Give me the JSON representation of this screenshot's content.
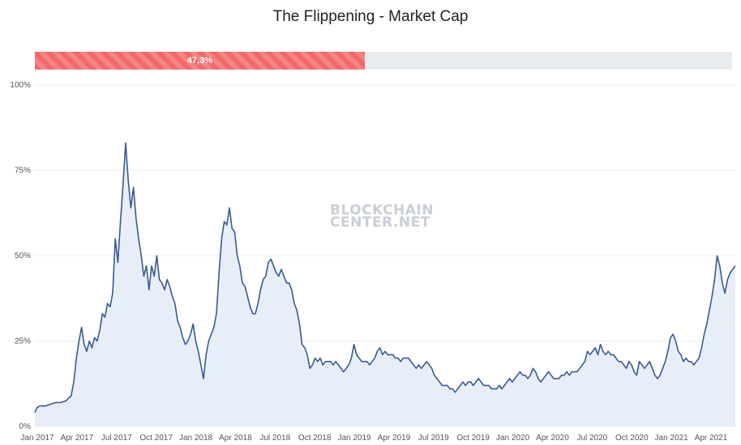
{
  "chart_data": {
    "type": "area",
    "title": "The Flippening - Market Cap",
    "ylim": [
      0,
      100
    ],
    "y_ticks": [
      "0%",
      "25%",
      "50%",
      "75%",
      "100%"
    ],
    "x_ticks": [
      "Jan 2017",
      "Apr 2017",
      "Jul 2017",
      "Oct 2017",
      "Jan 2018",
      "Apr 2018",
      "Jul 2018",
      "Oct 2018",
      "Jan 2019",
      "Apr 2019",
      "Jul 2019",
      "Oct 2019",
      "Jan 2020",
      "Apr 2020",
      "Jul 2020",
      "Oct 2020",
      "Jan 2021",
      "Apr 2021"
    ],
    "grid": true,
    "series": [
      {
        "values": [
          [
            0,
            4
          ],
          [
            0.4,
            5.5
          ],
          [
            1,
            6
          ],
          [
            2,
            6
          ],
          [
            3,
            6.5
          ],
          [
            4,
            7
          ],
          [
            5,
            7
          ],
          [
            6,
            7.5
          ],
          [
            7,
            9
          ],
          [
            7.5,
            13
          ],
          [
            8,
            20
          ],
          [
            8.5,
            25
          ],
          [
            9,
            29
          ],
          [
            9.5,
            24
          ],
          [
            10,
            22
          ],
          [
            10.5,
            25
          ],
          [
            11,
            23
          ],
          [
            11.5,
            26
          ],
          [
            12,
            25
          ],
          [
            12.5,
            28
          ],
          [
            13,
            33
          ],
          [
            13.5,
            32
          ],
          [
            14,
            36
          ],
          [
            14.5,
            35
          ],
          [
            15,
            39
          ],
          [
            15.5,
            55
          ],
          [
            16,
            48
          ],
          [
            16.5,
            60
          ],
          [
            17,
            71
          ],
          [
            17.5,
            83
          ],
          [
            18,
            72
          ],
          [
            18.5,
            64
          ],
          [
            19,
            70
          ],
          [
            19.5,
            61
          ],
          [
            20,
            55
          ],
          [
            20.5,
            50
          ],
          [
            21,
            44
          ],
          [
            21.5,
            47
          ],
          [
            22,
            40
          ],
          [
            22.5,
            47
          ],
          [
            23,
            44
          ],
          [
            23.5,
            50
          ],
          [
            24,
            43
          ],
          [
            24.5,
            42
          ],
          [
            25,
            40
          ],
          [
            25.5,
            43
          ],
          [
            26,
            41
          ],
          [
            26.5,
            38
          ],
          [
            27,
            36
          ],
          [
            27.5,
            31
          ],
          [
            28,
            29
          ],
          [
            28.5,
            26
          ],
          [
            29,
            24
          ],
          [
            29.5,
            25
          ],
          [
            30,
            27
          ],
          [
            30.5,
            30
          ],
          [
            31,
            25
          ],
          [
            31.5,
            22
          ],
          [
            32,
            18
          ],
          [
            32.5,
            14
          ],
          [
            33,
            21
          ],
          [
            33.5,
            25
          ],
          [
            34,
            27
          ],
          [
            34.5,
            29
          ],
          [
            35,
            33
          ],
          [
            35.5,
            45
          ],
          [
            36,
            55
          ],
          [
            36.5,
            60
          ],
          [
            37,
            59
          ],
          [
            37.5,
            64
          ],
          [
            38,
            58
          ],
          [
            38.5,
            57
          ],
          [
            39,
            50
          ],
          [
            39.5,
            47
          ],
          [
            40,
            42
          ],
          [
            40.5,
            41
          ],
          [
            41,
            38
          ],
          [
            41.5,
            35
          ],
          [
            42,
            33
          ],
          [
            42.5,
            33
          ],
          [
            43,
            36
          ],
          [
            43.5,
            40
          ],
          [
            44,
            43
          ],
          [
            44.5,
            44
          ],
          [
            45,
            48
          ],
          [
            45.5,
            49
          ],
          [
            46,
            47
          ],
          [
            46.5,
            45
          ],
          [
            47,
            44
          ],
          [
            47.5,
            46
          ],
          [
            48,
            44
          ],
          [
            48.5,
            42
          ],
          [
            49,
            42
          ],
          [
            49.5,
            40
          ],
          [
            50,
            36
          ],
          [
            50.5,
            34
          ],
          [
            51,
            30
          ],
          [
            51.5,
            24
          ],
          [
            52,
            23
          ],
          [
            52.5,
            21
          ],
          [
            53,
            17
          ],
          [
            53.5,
            18
          ],
          [
            54,
            20
          ],
          [
            54.5,
            19
          ],
          [
            55,
            20
          ],
          [
            55.5,
            18
          ],
          [
            56,
            19
          ],
          [
            56.5,
            19
          ],
          [
            57,
            19
          ],
          [
            57.5,
            18
          ],
          [
            58,
            19
          ],
          [
            58.5,
            18
          ],
          [
            59,
            17
          ],
          [
            59.5,
            16
          ],
          [
            60,
            17
          ],
          [
            60.5,
            18
          ],
          [
            61,
            20
          ],
          [
            61.5,
            24
          ],
          [
            62,
            21
          ],
          [
            62.5,
            20
          ],
          [
            63,
            19
          ],
          [
            63.5,
            19
          ],
          [
            64,
            19
          ],
          [
            64.5,
            18
          ],
          [
            65,
            19
          ],
          [
            65.5,
            20
          ],
          [
            66,
            22
          ],
          [
            66.5,
            23
          ],
          [
            67,
            21
          ],
          [
            67.5,
            22
          ],
          [
            68,
            21
          ],
          [
            68.5,
            21
          ],
          [
            69,
            21
          ],
          [
            69.5,
            20
          ],
          [
            70,
            20
          ],
          [
            70.5,
            19
          ],
          [
            71,
            20
          ],
          [
            71.5,
            20
          ],
          [
            72,
            20
          ],
          [
            72.5,
            19
          ],
          [
            73,
            18
          ],
          [
            73.5,
            17
          ],
          [
            74,
            18
          ],
          [
            74.5,
            17
          ],
          [
            75,
            18
          ],
          [
            75.5,
            19
          ],
          [
            76,
            18
          ],
          [
            76.5,
            17
          ],
          [
            77,
            15
          ],
          [
            77.5,
            14
          ],
          [
            78,
            13
          ],
          [
            78.5,
            12
          ],
          [
            79,
            12
          ],
          [
            79.5,
            12
          ],
          [
            80,
            11
          ],
          [
            80.5,
            11
          ],
          [
            81,
            10
          ],
          [
            81.5,
            11
          ],
          [
            82,
            12
          ],
          [
            82.5,
            13
          ],
          [
            83,
            12
          ],
          [
            83.5,
            13
          ],
          [
            84,
            13
          ],
          [
            84.5,
            12
          ],
          [
            85,
            13
          ],
          [
            85.5,
            14
          ],
          [
            86,
            13
          ],
          [
            86.5,
            12
          ],
          [
            87,
            12
          ],
          [
            87.5,
            12
          ],
          [
            88,
            11
          ],
          [
            88.5,
            11
          ],
          [
            89,
            11
          ],
          [
            89.5,
            12
          ],
          [
            90,
            11
          ],
          [
            90.5,
            12
          ],
          [
            91,
            13
          ],
          [
            91.5,
            14
          ],
          [
            92,
            13
          ],
          [
            92.5,
            14
          ],
          [
            93,
            15
          ],
          [
            93.5,
            16
          ],
          [
            94,
            15
          ],
          [
            94.5,
            15
          ],
          [
            95,
            14
          ],
          [
            95.5,
            15
          ],
          [
            96,
            17
          ],
          [
            96.5,
            16
          ],
          [
            97,
            14
          ],
          [
            97.5,
            13
          ],
          [
            98,
            14
          ],
          [
            98.5,
            15
          ],
          [
            99,
            16
          ],
          [
            99.5,
            15
          ],
          [
            100,
            14
          ],
          [
            100.5,
            14
          ],
          [
            101,
            14
          ],
          [
            101.5,
            15
          ],
          [
            102,
            15
          ],
          [
            102.5,
            16
          ],
          [
            103,
            15
          ],
          [
            103.5,
            16
          ],
          [
            104,
            16
          ],
          [
            104.5,
            16
          ],
          [
            105,
            17
          ],
          [
            105.5,
            18
          ],
          [
            106,
            19
          ],
          [
            106.5,
            22
          ],
          [
            107,
            21
          ],
          [
            107.5,
            22
          ],
          [
            108,
            23
          ],
          [
            108.5,
            21
          ],
          [
            109,
            24
          ],
          [
            109.5,
            22
          ],
          [
            110,
            21
          ],
          [
            110.5,
            22
          ],
          [
            111,
            21
          ],
          [
            111.5,
            21
          ],
          [
            112,
            20
          ],
          [
            112.5,
            19
          ],
          [
            113,
            19
          ],
          [
            113.5,
            18
          ],
          [
            114,
            17
          ],
          [
            114.5,
            19
          ],
          [
            115,
            18
          ],
          [
            115.5,
            16
          ],
          [
            116,
            15
          ],
          [
            116.5,
            19
          ],
          [
            117,
            18
          ],
          [
            117.5,
            17
          ],
          [
            118,
            18
          ],
          [
            118.5,
            19
          ],
          [
            119,
            17
          ],
          [
            119.5,
            15
          ],
          [
            120,
            14
          ],
          [
            120.5,
            15
          ],
          [
            121,
            17
          ],
          [
            121.5,
            19
          ],
          [
            122,
            22
          ],
          [
            122.5,
            26
          ],
          [
            123,
            27
          ],
          [
            123.5,
            25
          ],
          [
            124,
            22
          ],
          [
            124.5,
            21
          ],
          [
            125,
            19
          ],
          [
            125.5,
            20
          ],
          [
            126,
            19
          ],
          [
            126.5,
            19
          ],
          [
            127,
            18
          ],
          [
            127.5,
            19
          ],
          [
            128,
            20
          ],
          [
            128.5,
            23
          ],
          [
            129,
            27
          ],
          [
            129.5,
            30
          ],
          [
            130,
            34
          ],
          [
            130.5,
            38
          ],
          [
            131,
            43
          ],
          [
            131.5,
            50
          ],
          [
            132,
            47
          ],
          [
            132.5,
            42
          ],
          [
            133,
            39
          ],
          [
            133.5,
            43
          ],
          [
            134,
            45
          ],
          [
            134.5,
            46
          ],
          [
            135,
            47
          ]
        ]
      }
    ]
  },
  "progress": {
    "label": "47,3%",
    "percent": 47.3
  },
  "watermark": {
    "line1": "BLOCKCHAIN",
    "line2": "CENTER.NET"
  },
  "colors": {
    "line": "#3a5a8f",
    "area": "#e8eef7",
    "progress": "#f36868",
    "track": "#e9ecef",
    "grid": "#ececec"
  }
}
